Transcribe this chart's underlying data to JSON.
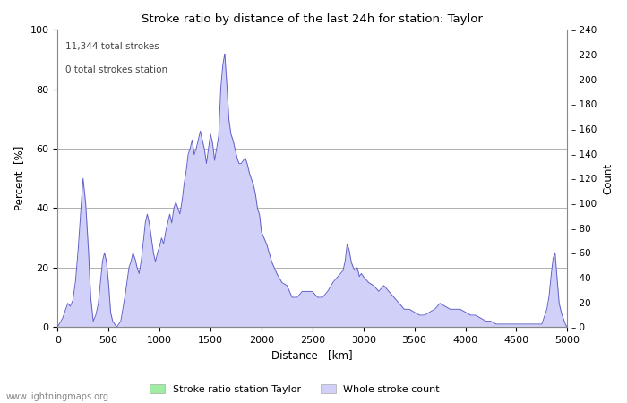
{
  "title": "Stroke ratio by distance of the last 24h for station: Taylor",
  "xlabel": "Distance   [km]",
  "ylabel_left": "Percent  [%]",
  "ylabel_right": "Count",
  "annotation_line1": "11,344 total strokes",
  "annotation_line2": "0 total strokes station",
  "xlim": [
    0,
    5000
  ],
  "ylim_left": [
    0,
    100
  ],
  "ylim_right": [
    0,
    240
  ],
  "yticks_left": [
    0,
    20,
    40,
    60,
    80,
    100
  ],
  "yticks_right": [
    0,
    20,
    40,
    60,
    80,
    100,
    120,
    140,
    160,
    180,
    200,
    220,
    240
  ],
  "xticks": [
    0,
    500,
    1000,
    1500,
    2000,
    2500,
    3000,
    3500,
    4000,
    4500,
    5000
  ],
  "legend_label_green": "Stroke ratio station Taylor",
  "legend_label_blue": "Whole stroke count",
  "fill_color_blue": "#d0d0f8",
  "fill_color_green": "#a0eca0",
  "line_color": "#6060c8",
  "background_color": "#ffffff",
  "watermark": "www.lightningmaps.org",
  "grid_color": "#b0b0b0",
  "stroke_ratio_y": [
    0,
    0,
    0,
    0,
    0,
    0,
    0,
    0,
    0,
    0,
    0,
    0,
    0,
    0,
    0,
    0,
    0,
    0,
    0,
    0,
    0,
    0,
    0,
    0,
    0,
    0,
    0,
    0,
    0,
    0,
    0,
    0,
    0,
    0,
    0,
    0,
    0,
    0,
    0,
    0,
    0,
    0,
    0,
    0,
    0,
    0,
    0,
    0,
    0,
    0,
    0,
    0,
    0,
    0,
    0,
    0,
    0,
    0,
    0,
    0,
    0,
    0,
    0,
    0,
    0,
    0,
    0,
    0,
    0,
    0,
    0,
    0,
    0,
    0,
    0,
    0,
    0,
    0,
    0,
    0,
    0,
    0,
    0,
    0,
    0,
    0,
    0,
    0,
    0,
    0,
    0,
    0,
    0,
    0,
    0,
    0,
    0,
    0,
    0,
    0,
    0
  ],
  "x_pts": [
    0,
    50,
    100,
    125,
    150,
    175,
    200,
    225,
    250,
    275,
    300,
    325,
    350,
    375,
    400,
    420,
    440,
    460,
    480,
    500,
    520,
    540,
    560,
    580,
    600,
    620,
    640,
    660,
    680,
    700,
    720,
    740,
    760,
    780,
    800,
    820,
    840,
    860,
    880,
    900,
    920,
    940,
    960,
    980,
    1000,
    1020,
    1040,
    1060,
    1080,
    1100,
    1120,
    1140,
    1160,
    1180,
    1200,
    1220,
    1240,
    1260,
    1280,
    1300,
    1320,
    1340,
    1360,
    1380,
    1400,
    1420,
    1440,
    1460,
    1480,
    1500,
    1520,
    1540,
    1560,
    1580,
    1600,
    1620,
    1640,
    1660,
    1680,
    1700,
    1720,
    1740,
    1760,
    1780,
    1800,
    1820,
    1840,
    1860,
    1880,
    1900,
    1920,
    1940,
    1960,
    1980,
    2000,
    2050,
    2100,
    2150,
    2200,
    2250,
    2300,
    2350,
    2400,
    2450,
    2500,
    2550,
    2600,
    2650,
    2700,
    2750,
    2800,
    2820,
    2840,
    2860,
    2880,
    2900,
    2920,
    2940,
    2960,
    2980,
    3000,
    3050,
    3100,
    3150,
    3200,
    3250,
    3300,
    3350,
    3400,
    3450,
    3500,
    3550,
    3600,
    3650,
    3700,
    3750,
    3800,
    3850,
    3900,
    3950,
    4000,
    4050,
    4100,
    4150,
    4200,
    4250,
    4300,
    4350,
    4400,
    4450,
    4500,
    4550,
    4600,
    4650,
    4700,
    4750,
    4800,
    4820,
    4840,
    4860,
    4880,
    4900,
    4920,
    4940,
    4960,
    4980,
    5000
  ],
  "y_pts": [
    0,
    3,
    8,
    7,
    9,
    15,
    25,
    38,
    50,
    42,
    28,
    10,
    2,
    4,
    8,
    15,
    22,
    25,
    22,
    15,
    5,
    2,
    1,
    0,
    1,
    2,
    6,
    10,
    15,
    20,
    22,
    25,
    23,
    20,
    18,
    22,
    28,
    35,
    38,
    35,
    30,
    25,
    22,
    25,
    27,
    30,
    28,
    32,
    35,
    38,
    35,
    40,
    42,
    40,
    38,
    42,
    48,
    52,
    58,
    60,
    63,
    58,
    60,
    63,
    66,
    63,
    60,
    55,
    60,
    65,
    62,
    56,
    60,
    64,
    80,
    88,
    92,
    82,
    70,
    65,
    63,
    60,
    57,
    55,
    55,
    56,
    57,
    55,
    52,
    50,
    48,
    45,
    40,
    38,
    32,
    28,
    22,
    18,
    15,
    14,
    10,
    10,
    12,
    12,
    12,
    10,
    10,
    12,
    15,
    17,
    19,
    22,
    28,
    26,
    22,
    20,
    19,
    20,
    17,
    18,
    17,
    15,
    14,
    12,
    14,
    12,
    10,
    8,
    6,
    6,
    5,
    4,
    4,
    5,
    6,
    8,
    7,
    6,
    6,
    6,
    5,
    4,
    4,
    3,
    2,
    2,
    1,
    1,
    1,
    1,
    1,
    1,
    1,
    1,
    1,
    1,
    6,
    10,
    17,
    23,
    25,
    16,
    8,
    5,
    3,
    1,
    0
  ]
}
